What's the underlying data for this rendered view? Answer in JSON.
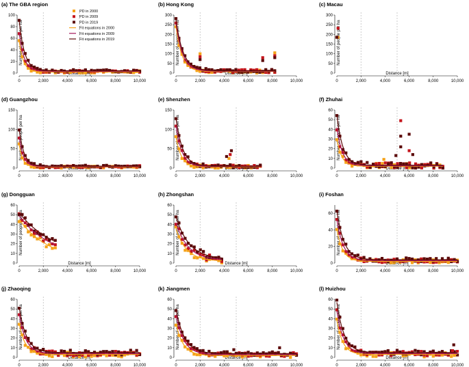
{
  "figure": {
    "series_legend": [
      {
        "name": "PD in 2000",
        "kind": "point",
        "color": "#f5a31a"
      },
      {
        "name": "PD in 2009",
        "kind": "point",
        "color": "#c4151c"
      },
      {
        "name": "PD in 2019",
        "kind": "point",
        "color": "#5c0a0a"
      },
      {
        "name": "Fit equations in 2000",
        "kind": "line",
        "color": "#f5a31a"
      },
      {
        "name": "Fit equations in 2009",
        "kind": "line",
        "color": "#a3155a"
      },
      {
        "name": "Fit equations in 2019",
        "kind": "line",
        "color": "#5c0a0a"
      }
    ]
  },
  "chart_data": [
    {
      "type": "scatter",
      "title": "(a) The GBA region",
      "xlabel": "Distance [m]",
      "ylabel": "Number of people per ha",
      "xlim": [
        0,
        10000
      ],
      "ylim": [
        0,
        100
      ],
      "yticks": [
        0,
        20,
        40,
        60,
        80,
        100
      ],
      "xticks": [
        0,
        2000,
        4000,
        6000,
        8000,
        10000
      ],
      "xtick_labels": [
        "0",
        "2,000",
        "4,000",
        "6,000",
        "8,000",
        "10,000"
      ],
      "dashed_x": [
        2000,
        5000
      ],
      "x_max": 10000,
      "peaks": [
        55,
        70,
        90
      ],
      "base": [
        2,
        3,
        4
      ],
      "decay": [
        350,
        400,
        450
      ],
      "noise": 2,
      "outliers": []
    },
    {
      "type": "scatter",
      "title": "(b) Hong Kong",
      "xlabel": "Distance [m]",
      "ylabel": "Number of people per ha",
      "xlim": [
        0,
        10000
      ],
      "ylim": [
        0,
        300
      ],
      "yticks": [
        0,
        50,
        100,
        150,
        200,
        250,
        300
      ],
      "xticks": [
        0,
        2000,
        4000,
        6000,
        8000,
        10000
      ],
      "xtick_labels": [
        "0",
        "2,000",
        "4,000",
        "6,000",
        "8,000",
        "10,000"
      ],
      "dashed_x": [
        2000,
        5000
      ],
      "x_max": 8200,
      "peaks": [
        240,
        260,
        275
      ],
      "base": [
        8,
        10,
        12
      ],
      "decay": [
        500,
        550,
        600
      ],
      "noise": 8,
      "outliers": [
        [
          2000,
          100,
          0
        ],
        [
          2000,
          85,
          1
        ],
        [
          2000,
          70,
          2
        ],
        [
          7200,
          80,
          1
        ],
        [
          7200,
          65,
          2
        ],
        [
          8200,
          105,
          0
        ],
        [
          8200,
          90,
          1
        ],
        [
          8200,
          80,
          2
        ]
      ]
    },
    {
      "type": "scatter",
      "title": "(c) Macau",
      "xlabel": "Distance [m]",
      "ylabel": "Number of people per ha",
      "xlim": [
        0,
        10000
      ],
      "ylim": [
        0,
        300
      ],
      "yticks": [
        0,
        50,
        100,
        150,
        200,
        250,
        300
      ],
      "xticks": [
        0,
        2000,
        4000,
        6000,
        8000,
        10000
      ],
      "xtick_labels": [
        "0",
        "2,000",
        "4,000",
        "6,000",
        "8,000",
        "10,000"
      ],
      "dashed_x": [
        2000,
        5000
      ],
      "x_max": 0,
      "peaks": [
        185,
        230,
        185
      ],
      "base": [
        0,
        0,
        0
      ],
      "decay": [
        1,
        1,
        1
      ],
      "noise": 0,
      "outliers": [],
      "points_only": [
        [
          100,
          185,
          0
        ],
        [
          100,
          232,
          1
        ],
        [
          0,
          185,
          2
        ]
      ]
    },
    {
      "type": "scatter",
      "title": "(d) Guangzhou",
      "xlabel": "Distance [m]",
      "ylabel": "Number of people per ha",
      "xlim": [
        0,
        10000
      ],
      "ylim": [
        0,
        150
      ],
      "yticks": [
        0,
        50,
        100,
        150
      ],
      "xticks": [
        0,
        2000,
        4000,
        6000,
        8000,
        10000
      ],
      "xtick_labels": [
        "0",
        "2,000",
        "4,000",
        "6,000",
        "8,000",
        "10,000"
      ],
      "dashed_x": [
        2000,
        5000
      ],
      "x_max": 10000,
      "peaks": [
        60,
        80,
        100
      ],
      "base": [
        3,
        4,
        5
      ],
      "decay": [
        300,
        350,
        400
      ],
      "noise": 3,
      "outliers": []
    },
    {
      "type": "scatter",
      "title": "(e) Shenzhen",
      "xlabel": "Distance [m]",
      "ylabel": "Number of people per ha",
      "xlim": [
        0,
        10000
      ],
      "ylim": [
        0,
        150
      ],
      "yticks": [
        0,
        50,
        100,
        150
      ],
      "xticks": [
        0,
        2000,
        4000,
        6000,
        8000,
        10000
      ],
      "xtick_labels": [
        "0",
        "2,000",
        "4,000",
        "6,000",
        "8,000",
        "10,000"
      ],
      "dashed_x": [
        2000,
        5000
      ],
      "x_max": 7000,
      "peaks": [
        80,
        110,
        130
      ],
      "base": [
        3,
        4,
        5
      ],
      "decay": [
        450,
        500,
        550
      ],
      "noise": 4,
      "outliers": [
        [
          4400,
          25,
          0
        ],
        [
          4500,
          35,
          1
        ],
        [
          4600,
          45,
          2
        ],
        [
          4200,
          30,
          2
        ]
      ]
    },
    {
      "type": "scatter",
      "title": "(f) Zhuhai",
      "xlabel": "Distance [m]",
      "ylabel": "Number of people per ha",
      "xlim": [
        0,
        10000
      ],
      "ylim": [
        0,
        60
      ],
      "yticks": [
        0,
        10,
        20,
        30,
        40,
        50,
        60
      ],
      "xticks": [
        0,
        2000,
        4000,
        6000,
        8000,
        10000
      ],
      "xtick_labels": [
        "0",
        "2,000",
        "4,000",
        "6,000",
        "8,000",
        "10,000"
      ],
      "dashed_x": [
        2000,
        5000
      ],
      "x_max": 8800,
      "peaks": [
        30,
        42,
        55
      ],
      "base": [
        2,
        2.5,
        3
      ],
      "decay": [
        400,
        450,
        500
      ],
      "noise": 3,
      "outliers": [
        [
          5300,
          49,
          1
        ],
        [
          5300,
          33,
          2
        ],
        [
          5300,
          22,
          2
        ],
        [
          6000,
          35,
          2
        ],
        [
          6000,
          18,
          1
        ],
        [
          6300,
          14,
          2
        ],
        [
          4900,
          13,
          2
        ],
        [
          3900,
          9,
          0
        ]
      ]
    },
    {
      "type": "scatter",
      "title": "(g) Dongguan",
      "xlabel": "Distance [m]",
      "ylabel": "Number of people per ha",
      "xlim": [
        0,
        10000
      ],
      "ylim": [
        0,
        60
      ],
      "yticks": [
        0,
        10,
        20,
        30,
        40,
        50,
        60
      ],
      "xticks": [
        0,
        2000,
        4000,
        6000,
        8000,
        10000
      ],
      "xtick_labels": [
        "0",
        "2,000",
        "4,000",
        "6,000",
        "8,000",
        "10,000"
      ],
      "dashed_x": [
        2000,
        5000
      ],
      "x_max": 3000,
      "peaks": [
        45,
        49,
        52
      ],
      "base": [
        2,
        4,
        6
      ],
      "decay": [
        2500,
        2700,
        2900
      ],
      "noise": 3,
      "outliers": []
    },
    {
      "type": "scatter",
      "title": "(h) Zhongshan",
      "xlabel": "Distance [m]",
      "ylabel": "Number of people per ha",
      "xlim": [
        0,
        10000
      ],
      "ylim": [
        0,
        60
      ],
      "yticks": [
        0,
        10,
        20,
        30,
        40,
        50,
        60
      ],
      "xticks": [
        0,
        2000,
        4000,
        6000,
        8000,
        10000
      ],
      "xtick_labels": [
        "0",
        "2,000",
        "4,000",
        "6,000",
        "8,000",
        "10,000"
      ],
      "dashed_x": [
        2000,
        5000
      ],
      "x_max": 3800,
      "peaks": [
        35,
        42,
        48
      ],
      "base": [
        2,
        3,
        4
      ],
      "decay": [
        900,
        1000,
        1100
      ],
      "noise": 3,
      "outliers": []
    },
    {
      "type": "scatter",
      "title": "(i) Foshan",
      "xlabel": "Distance [m]",
      "ylabel": "Number of people per ha",
      "xlim": [
        0,
        10000
      ],
      "ylim": [
        0,
        70
      ],
      "yticks": [
        0,
        20,
        40,
        60
      ],
      "xticks": [
        0,
        2000,
        4000,
        6000,
        8000,
        10000
      ],
      "xtick_labels": [
        "0",
        "2,000",
        "4,000",
        "6,000",
        "8,000",
        "10,000"
      ],
      "dashed_x": [
        2000,
        5000
      ],
      "x_max": 10000,
      "peaks": [
        40,
        52,
        63
      ],
      "base": [
        2,
        3,
        4
      ],
      "decay": [
        500,
        550,
        600
      ],
      "noise": 2.5,
      "outliers": []
    },
    {
      "type": "scatter",
      "title": "(j) Zhaoqing",
      "xlabel": "Distance [m]",
      "ylabel": "Number of people per ha",
      "xlim": [
        0,
        10000
      ],
      "ylim": [
        0,
        60
      ],
      "yticks": [
        0,
        10,
        20,
        30,
        40,
        50,
        60
      ],
      "xticks": [
        0,
        2000,
        4000,
        6000,
        8000,
        10000
      ],
      "xtick_labels": [
        "0",
        "2,000",
        "4,000",
        "6,000",
        "8,000",
        "10,000"
      ],
      "dashed_x": [
        2000,
        5000
      ],
      "x_max": 10000,
      "peaks": [
        35,
        45,
        52
      ],
      "base": [
        3,
        4,
        5
      ],
      "decay": [
        500,
        550,
        600
      ],
      "noise": 2.5,
      "outliers": []
    },
    {
      "type": "scatter",
      "title": "(k) Jiangmen",
      "xlabel": "Distance [m]",
      "ylabel": "Number of people per ha",
      "xlim": [
        0,
        10000
      ],
      "ylim": [
        0,
        60
      ],
      "yticks": [
        0,
        10,
        20,
        30,
        40,
        50,
        60
      ],
      "xticks": [
        0,
        2000,
        4000,
        6000,
        8000,
        10000
      ],
      "xtick_labels": [
        "0",
        "2,000",
        "4,000",
        "6,000",
        "8,000",
        "10,000"
      ],
      "dashed_x": [
        2000,
        5000
      ],
      "x_max": 10000,
      "peaks": [
        35,
        44,
        50
      ],
      "base": [
        2,
        3,
        4
      ],
      "decay": [
        600,
        650,
        700
      ],
      "noise": 2,
      "outliers": [
        [
          8600,
          10,
          2
        ],
        [
          4800,
          8,
          2
        ]
      ]
    },
    {
      "type": "scatter",
      "title": "(l) Huizhou",
      "xlabel": "Distance [m]",
      "ylabel": "Number of people per ha",
      "xlim": [
        0,
        10000
      ],
      "ylim": [
        0,
        60
      ],
      "yticks": [
        0,
        10,
        20,
        30,
        40,
        50,
        60
      ],
      "xticks": [
        0,
        2000,
        4000,
        6000,
        8000,
        10000
      ],
      "xtick_labels": [
        "0",
        "2,000",
        "4,000",
        "6,000",
        "8,000",
        "10,000"
      ],
      "dashed_x": [
        2000,
        5000
      ],
      "x_max": 10000,
      "peaks": [
        38,
        48,
        57
      ],
      "base": [
        3,
        4,
        5
      ],
      "decay": [
        500,
        550,
        600
      ],
      "noise": 2.5,
      "outliers": [
        [
          9700,
          13,
          2
        ],
        [
          9600,
          7,
          1
        ]
      ]
    }
  ]
}
